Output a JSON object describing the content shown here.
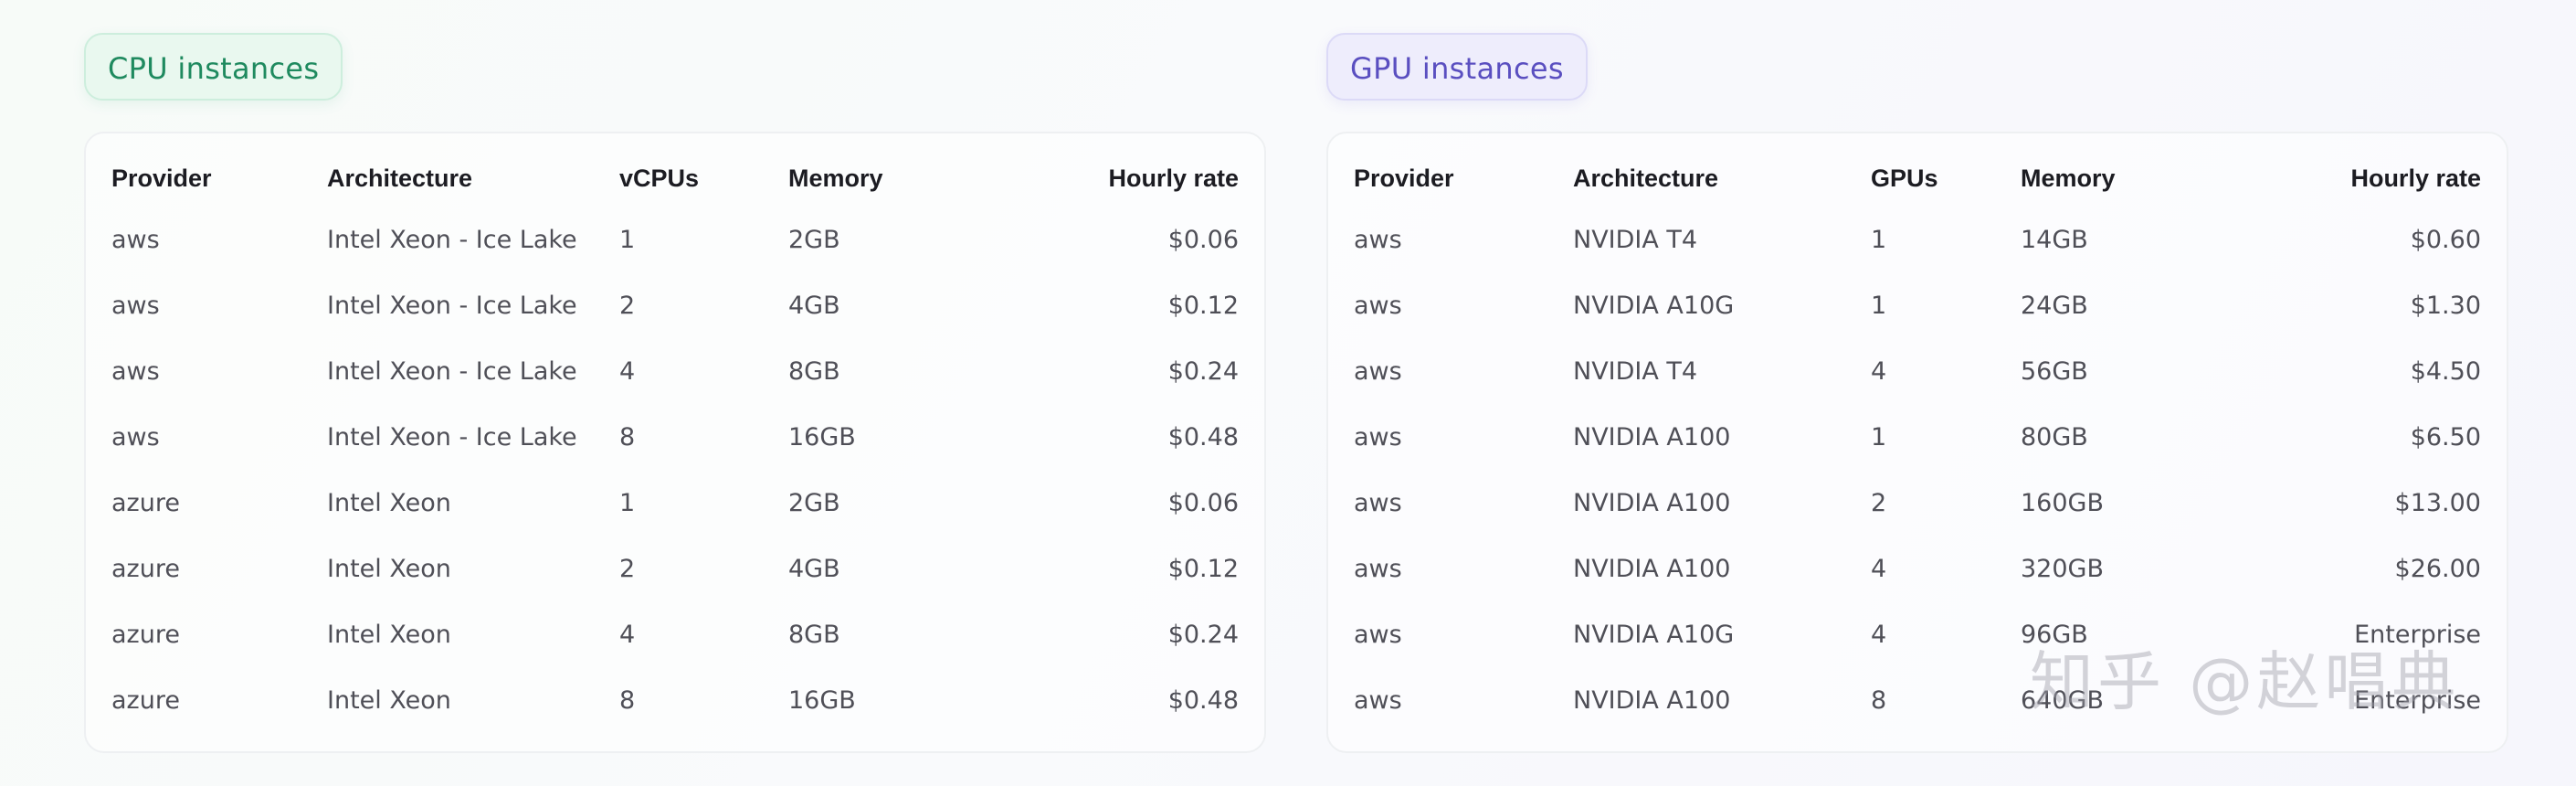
{
  "cpu": {
    "title": "CPU instances",
    "headers": [
      "Provider",
      "Architecture",
      "vCPUs",
      "Memory",
      "Hourly rate"
    ],
    "rows": [
      [
        "aws",
        "Intel Xeon - Ice Lake",
        "1",
        "2GB",
        "$0.06"
      ],
      [
        "aws",
        "Intel Xeon - Ice Lake",
        "2",
        "4GB",
        "$0.12"
      ],
      [
        "aws",
        "Intel Xeon - Ice Lake",
        "4",
        "8GB",
        "$0.24"
      ],
      [
        "aws",
        "Intel Xeon - Ice Lake",
        "8",
        "16GB",
        "$0.48"
      ],
      [
        "azure",
        "Intel Xeon",
        "1",
        "2GB",
        "$0.06"
      ],
      [
        "azure",
        "Intel Xeon",
        "2",
        "4GB",
        "$0.12"
      ],
      [
        "azure",
        "Intel Xeon",
        "4",
        "8GB",
        "$0.24"
      ],
      [
        "azure",
        "Intel Xeon",
        "8",
        "16GB",
        "$0.48"
      ]
    ]
  },
  "gpu": {
    "title": "GPU instances",
    "headers": [
      "Provider",
      "Architecture",
      "GPUs",
      "Memory",
      "Hourly rate"
    ],
    "rows": [
      [
        "aws",
        "NVIDIA T4",
        "1",
        "14GB",
        "$0.60"
      ],
      [
        "aws",
        "NVIDIA A10G",
        "1",
        "24GB",
        "$1.30"
      ],
      [
        "aws",
        "NVIDIA T4",
        "4",
        "56GB",
        "$4.50"
      ],
      [
        "aws",
        "NVIDIA A100",
        "1",
        "80GB",
        "$6.50"
      ],
      [
        "aws",
        "NVIDIA A100",
        "2",
        "160GB",
        "$13.00"
      ],
      [
        "aws",
        "NVIDIA A100",
        "4",
        "320GB",
        "$26.00"
      ],
      [
        "aws",
        "NVIDIA A10G",
        "4",
        "96GB",
        "Enterprise"
      ],
      [
        "aws",
        "NVIDIA A100",
        "8",
        "640GB",
        "Enterprise"
      ]
    ]
  },
  "watermark": "知乎 @赵唱典",
  "colors": {
    "cpu_accent": "#1f8a5f",
    "gpu_accent": "#5a4fc0"
  }
}
